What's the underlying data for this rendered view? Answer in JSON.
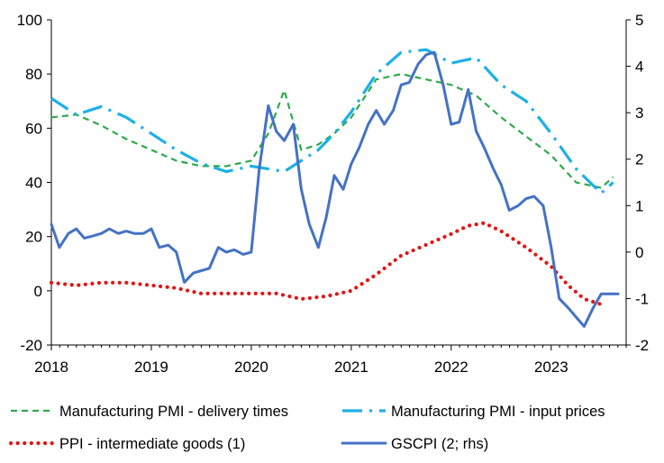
{
  "chart_data": {
    "type": "line",
    "title": "",
    "xlabel": "",
    "ylabel": "",
    "x_range": [
      2018.0,
      2023.75
    ],
    "x_ticks": [
      2018,
      2019,
      2020,
      2021,
      2022,
      2023
    ],
    "x_tick_labels": [
      "2018",
      "2019",
      "2020",
      "2021",
      "2022",
      "2023"
    ],
    "y_left": {
      "range": [
        -20,
        100
      ],
      "ticks": [
        -20,
        0,
        20,
        40,
        60,
        80,
        100
      ],
      "tick_labels": [
        "-20",
        "0",
        "20",
        "40",
        "60",
        "80",
        "100"
      ]
    },
    "y_right": {
      "range": [
        -2,
        5
      ],
      "ticks": [
        -2,
        -1,
        0,
        1,
        2,
        3,
        4,
        5
      ],
      "tick_labels": [
        "-2",
        "-1",
        "0",
        "1",
        "2",
        "3",
        "4",
        "5"
      ]
    },
    "grid": false,
    "legend_placement": "bottom",
    "series": [
      {
        "name": "Manufacturing PMI - delivery times",
        "axis": "left",
        "color": "#2EAA4A",
        "style": "dashed",
        "x": [
          2018.0,
          2018.25,
          2018.5,
          2018.75,
          2019.0,
          2019.25,
          2019.5,
          2019.75,
          2020.0,
          2020.17,
          2020.33,
          2020.5,
          2020.67,
          2020.83,
          2021.0,
          2021.25,
          2021.5,
          2021.75,
          2022.0,
          2022.25,
          2022.5,
          2022.75,
          2023.0,
          2023.25,
          2023.5,
          2023.62
        ],
        "values": [
          64,
          65,
          61,
          56,
          52,
          48,
          46,
          46,
          48,
          58,
          74,
          52,
          54,
          58,
          64,
          78,
          80,
          78,
          76,
          72,
          64,
          57,
          50,
          40,
          38,
          42
        ]
      },
      {
        "name": "Manufacturing PMI - input prices",
        "axis": "left",
        "color": "#1CB0E8",
        "style": "long-dash",
        "x": [
          2018.0,
          2018.25,
          2018.5,
          2018.75,
          2019.0,
          2019.25,
          2019.5,
          2019.75,
          2020.0,
          2020.17,
          2020.33,
          2020.5,
          2020.67,
          2020.83,
          2021.0,
          2021.25,
          2021.5,
          2021.75,
          2022.0,
          2022.25,
          2022.5,
          2022.75,
          2023.0,
          2023.25,
          2023.5,
          2023.62
        ],
        "values": [
          71,
          65,
          68,
          64,
          58,
          52,
          47,
          44,
          46,
          45,
          44,
          48,
          52,
          58,
          66,
          80,
          88,
          89,
          84,
          86,
          76,
          70,
          58,
          45,
          36,
          40
        ]
      },
      {
        "name": "PPI - intermediate goods (1)",
        "axis": "left",
        "color": "#E01616",
        "style": "dotted",
        "x": [
          2018.0,
          2018.25,
          2018.5,
          2018.75,
          2019.0,
          2019.25,
          2019.5,
          2019.75,
          2020.0,
          2020.25,
          2020.5,
          2020.75,
          2021.0,
          2021.25,
          2021.5,
          2021.75,
          2022.0,
          2022.17,
          2022.33,
          2022.5,
          2022.75,
          2023.0,
          2023.17,
          2023.33,
          2023.5
        ],
        "values": [
          3,
          2,
          3,
          3,
          2,
          1,
          -1,
          -1,
          -1,
          -1,
          -3,
          -2,
          0,
          6,
          13,
          17,
          21,
          24,
          25,
          22,
          16,
          9,
          2,
          -3,
          -5
        ]
      },
      {
        "name": "GSCPI (2; rhs)",
        "axis": "right",
        "color": "#4472C4",
        "style": "solid",
        "x": [
          2018.0,
          2018.08,
          2018.17,
          2018.25,
          2018.33,
          2018.42,
          2018.5,
          2018.58,
          2018.67,
          2018.75,
          2018.83,
          2018.92,
          2019.0,
          2019.08,
          2019.17,
          2019.25,
          2019.33,
          2019.42,
          2019.5,
          2019.58,
          2019.67,
          2019.75,
          2019.83,
          2019.92,
          2020.0,
          2020.08,
          2020.17,
          2020.25,
          2020.33,
          2020.42,
          2020.5,
          2020.58,
          2020.67,
          2020.75,
          2020.83,
          2020.92,
          2021.0,
          2021.08,
          2021.17,
          2021.25,
          2021.33,
          2021.42,
          2021.5,
          2021.58,
          2021.67,
          2021.75,
          2021.83,
          2021.92,
          2022.0,
          2022.08,
          2022.17,
          2022.25,
          2022.33,
          2022.42,
          2022.5,
          2022.58,
          2022.67,
          2022.75,
          2022.83,
          2022.92,
          2023.0,
          2023.08,
          2023.17,
          2023.25,
          2023.33,
          2023.42,
          2023.5,
          2023.58,
          2023.67
        ],
        "values": [
          0.6,
          0.1,
          0.4,
          0.5,
          0.3,
          0.35,
          0.4,
          0.5,
          0.4,
          0.45,
          0.4,
          0.4,
          0.5,
          0.1,
          0.15,
          0.0,
          -0.65,
          -0.45,
          -0.4,
          -0.35,
          0.1,
          0.0,
          0.05,
          -0.05,
          0.0,
          1.8,
          3.15,
          2.6,
          2.4,
          2.75,
          1.35,
          0.6,
          0.1,
          0.75,
          1.65,
          1.35,
          1.9,
          2.25,
          2.75,
          3.05,
          2.75,
          3.05,
          3.6,
          3.65,
          4.05,
          4.25,
          4.3,
          3.6,
          2.75,
          2.8,
          3.5,
          2.6,
          2.25,
          1.8,
          1.45,
          0.9,
          1.0,
          1.15,
          1.2,
          1.0,
          0.1,
          -1.0,
          -1.2,
          -1.4,
          -1.6,
          -1.2,
          -0.9,
          -0.9,
          -0.9
        ]
      }
    ]
  }
}
